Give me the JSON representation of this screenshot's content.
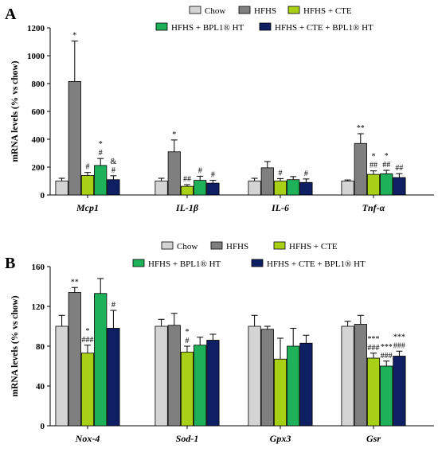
{
  "chart_data": [
    {
      "panel": "A",
      "type": "bar",
      "ylabel": "mRNA levels (% vs chow)",
      "ylim": [
        0,
        1200
      ],
      "yticks": [
        "0",
        "200",
        "400",
        "600",
        "800",
        "1000",
        "1200"
      ],
      "categories": [
        "Mcp1",
        "IL-1β",
        "IL-6",
        "Tnf-α"
      ],
      "legend": {
        "placement": "top",
        "entries": [
          "Chow",
          "HFHS",
          "HFHS + CTE",
          "HFHS + BPL1® HT",
          "HFHS + CTE + BPL1® HT"
        ]
      },
      "series": [
        {
          "name": "Chow",
          "color": "#d4d4d4",
          "values": [
            100,
            100,
            100,
            100
          ],
          "errors": [
            20,
            20,
            20,
            8
          ],
          "sig": [
            [],
            [],
            [],
            []
          ]
        },
        {
          "name": "HFHS",
          "color": "#7f7f7f",
          "values": [
            815,
            310,
            195,
            370
          ],
          "errors": [
            290,
            85,
            45,
            70
          ],
          "sig": [
            [
              "*"
            ],
            [
              "*"
            ],
            [],
            [
              "**"
            ]
          ]
        },
        {
          "name": "HFHS + CTE",
          "color": "#a8d016",
          "values": [
            140,
            62,
            100,
            148
          ],
          "errors": [
            22,
            12,
            18,
            25
          ],
          "sig": [
            [
              "#"
            ],
            [
              "##"
            ],
            [
              "#"
            ],
            [
              "*",
              "##"
            ]
          ]
        },
        {
          "name": "HFHS + BPL1® HT",
          "color": "#1fb05a",
          "values": [
            212,
            105,
            110,
            152
          ],
          "errors": [
            50,
            30,
            22,
            25
          ],
          "sig": [
            [
              "*",
              "#"
            ],
            [
              "#"
            ],
            [],
            [
              "*",
              "##"
            ]
          ]
        },
        {
          "name": "HFHS + CTE + BPL1® HT",
          "color": "#0f1f63",
          "values": [
            110,
            85,
            90,
            125
          ],
          "errors": [
            28,
            20,
            25,
            28
          ],
          "sig": [
            [
              "&",
              "#"
            ],
            [
              "#"
            ],
            [
              "#"
            ],
            [
              "##"
            ]
          ]
        }
      ]
    },
    {
      "panel": "B",
      "type": "bar",
      "ylabel": "mRNA levels (% vs chow)",
      "ylim": [
        0,
        160
      ],
      "yticks": [
        "0",
        "40",
        "80",
        "120",
        "160"
      ],
      "categories": [
        "Nox-4",
        "Sod-1",
        "Gpx3",
        "Gsr"
      ],
      "legend": {
        "placement": "top",
        "entries": [
          "Chow",
          "HFHS",
          "HFHS + CTE",
          "HFHS + BPL1® HT",
          "HFHS + CTE + BPL1® HT"
        ]
      },
      "series": [
        {
          "name": "Chow",
          "color": "#d4d4d4",
          "values": [
            100,
            100,
            100,
            100
          ],
          "errors": [
            11,
            7,
            11,
            5
          ],
          "sig": [
            [],
            [],
            [],
            []
          ]
        },
        {
          "name": "HFHS",
          "color": "#7f7f7f",
          "values": [
            134,
            101,
            97,
            102
          ],
          "errors": [
            5,
            12,
            3,
            9
          ],
          "sig": [
            [
              "**"
            ],
            [],
            [],
            []
          ]
        },
        {
          "name": "HFHS + CTE",
          "color": "#a8d016",
          "values": [
            73,
            74,
            67,
            68
          ],
          "errors": [
            8,
            6,
            21,
            5
          ],
          "sig": [
            [
              "*",
              "###"
            ],
            [
              "*",
              "#"
            ],
            [],
            [
              "***",
              "###"
            ]
          ]
        },
        {
          "name": "HFHS + BPL1® HT",
          "color": "#1fb05a",
          "values": [
            133,
            81,
            80,
            60
          ],
          "errors": [
            15,
            8,
            18,
            5
          ],
          "sig": [
            [],
            [],
            [],
            [
              "***",
              "###"
            ]
          ]
        },
        {
          "name": "HFHS + CTE + BPL1® HT",
          "color": "#0f1f63",
          "values": [
            98,
            86,
            83,
            70
          ],
          "errors": [
            18,
            6,
            8,
            5
          ],
          "sig": [
            [
              "#"
            ],
            [],
            [],
            [
              "***",
              "###"
            ]
          ]
        }
      ]
    }
  ]
}
